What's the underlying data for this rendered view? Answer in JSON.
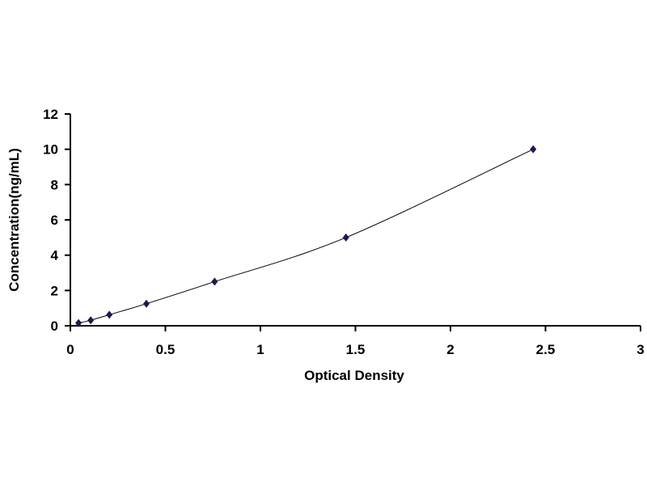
{
  "chart_data": {
    "type": "scatter",
    "title": "",
    "xlabel": "Optical Density",
    "ylabel": "Concentration(ng/mL)",
    "xlim": [
      0,
      3
    ],
    "ylim": [
      0,
      12
    ],
    "xticks": [
      "0",
      "0.5",
      "1",
      "1.5",
      "2",
      "2.5",
      "3"
    ],
    "yticks": [
      "0",
      "2",
      "4",
      "6",
      "8",
      "10",
      "12"
    ],
    "grid": false,
    "legend": "none",
    "trendline": "smooth curve through points",
    "marker": "diamond",
    "color": "#1a1a4e",
    "x": [
      0.043,
      0.107,
      0.205,
      0.4,
      0.759,
      1.45,
      2.435
    ],
    "y": [
      0.156,
      0.312,
      0.625,
      1.25,
      2.5,
      5,
      10
    ]
  }
}
